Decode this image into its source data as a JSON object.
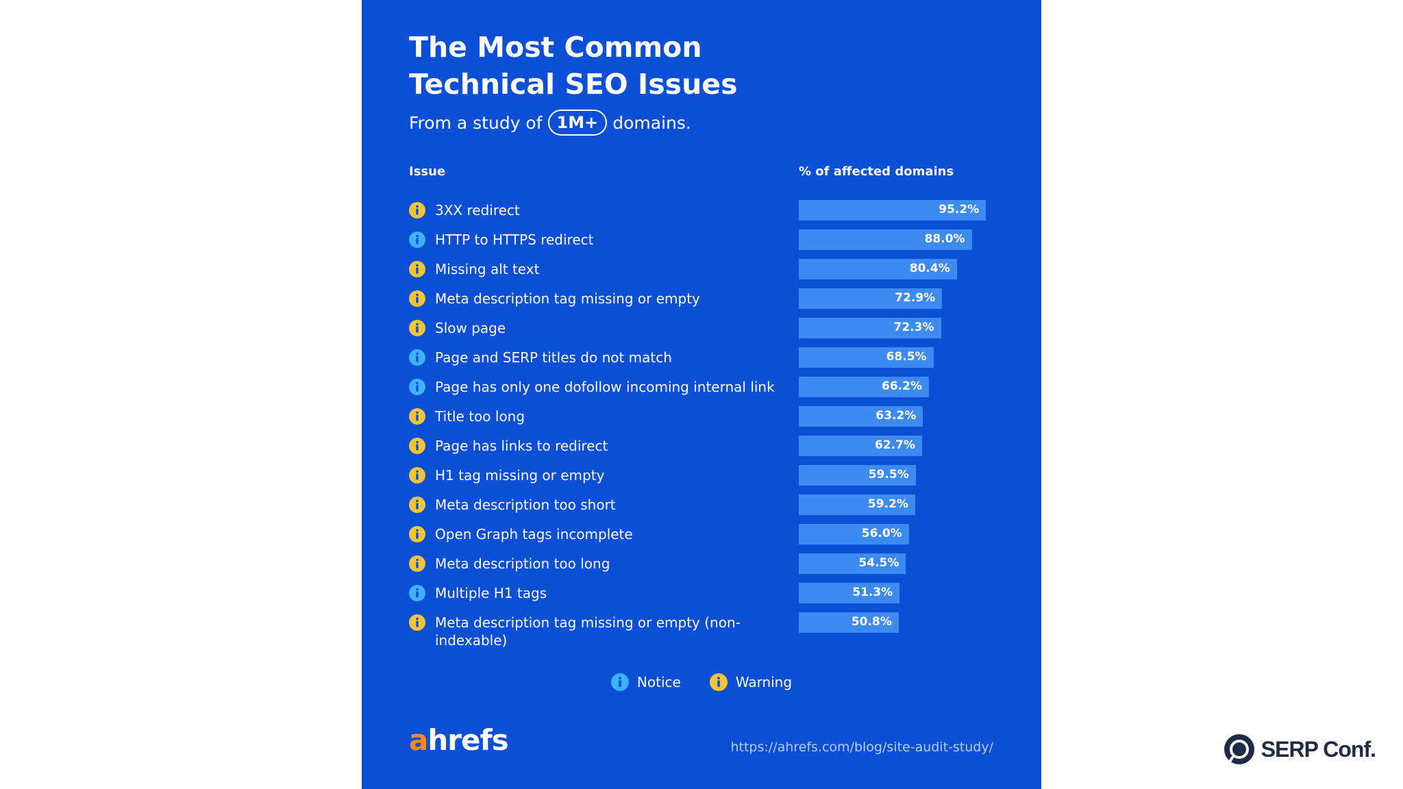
{
  "header": {
    "title_line1": "The Most Common",
    "title_line2": "Technical SEO Issues",
    "subtitle_before": "From a study of",
    "subtitle_pill": "1M+",
    "subtitle_after": "domains."
  },
  "columns": {
    "issue": "Issue",
    "pct": "% of affected domains"
  },
  "colors": {
    "background": "#0a4fd6",
    "bar": "#3d8bf0",
    "notice": "#3fb2ff",
    "warning": "#f5c431"
  },
  "chart_data": {
    "type": "bar",
    "orientation": "horizontal",
    "title": "The Most Common Technical SEO Issues",
    "subtitle": "From a study of 1M+ domains.",
    "xlabel": "% of affected domains",
    "ylabel": "Issue",
    "xlim": [
      0,
      100
    ],
    "categories": [
      "3XX redirect",
      "HTTP to HTTPS redirect",
      "Missing alt text",
      "Meta description tag missing or empty",
      "Slow page",
      "Page and SERP titles do not match",
      "Page has only one dofollow incoming internal link",
      "Title too long",
      "Page has links to redirect",
      "H1 tag missing or empty",
      "Meta description too short",
      "Open Graph tags incomplete",
      "Meta description too long",
      "Multiple H1 tags",
      "Meta description tag missing or empty (non-indexable)"
    ],
    "values": [
      95.2,
      88.0,
      80.4,
      72.9,
      72.3,
      68.5,
      66.2,
      63.2,
      62.7,
      59.5,
      59.2,
      56.0,
      54.5,
      51.3,
      50.8
    ],
    "value_labels": [
      "95.2%",
      "88.0%",
      "80.4%",
      "72.9%",
      "72.3%",
      "68.5%",
      "66.2%",
      "63.2%",
      "62.7%",
      "59.5%",
      "59.2%",
      "56.0%",
      "54.5%",
      "51.3%",
      "50.8%"
    ],
    "severity": [
      "warning",
      "notice",
      "warning",
      "warning",
      "warning",
      "notice",
      "notice",
      "warning",
      "warning",
      "warning",
      "warning",
      "warning",
      "warning",
      "notice",
      "warning"
    ],
    "legend": [
      {
        "key": "notice",
        "label": "Notice"
      },
      {
        "key": "warning",
        "label": "Warning"
      }
    ]
  },
  "footer": {
    "logo_accent": "a",
    "logo_rest": "hrefs",
    "url": "https://ahrefs.com/blog/site-audit-study/"
  },
  "watermark": {
    "text": "SERP Conf."
  }
}
